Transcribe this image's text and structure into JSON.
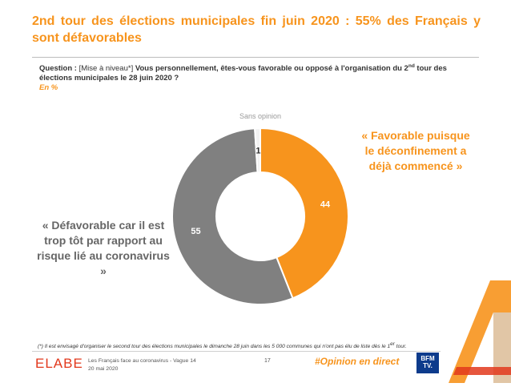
{
  "title": "2nd tour des élections municipales fin juin 2020 : 55% des Français y sont défavorables",
  "question": {
    "label": "Question :",
    "level": "[Mise à niveau*]",
    "text_before_sup": "Vous personnellement, êtes-vous favorable ou opposé à l'organisation du 2",
    "text_sup": "nd",
    "text_after_sup": " tour des élections municipales le 28 juin 2020 ?",
    "unit": "En %"
  },
  "chart_data": {
    "type": "pie",
    "donut": true,
    "slices": [
      {
        "label": "Favorable",
        "value": 44,
        "color": "#f7941d",
        "label_color": "#ffffff"
      },
      {
        "label": "Défavorable",
        "value": 55,
        "color": "#808080",
        "label_color": "#ffffff"
      },
      {
        "label": "Sans opinion",
        "value": 1,
        "color": "#f2f2f2",
        "label_color": "#333333"
      }
    ],
    "annotations": [
      "Sans opinion"
    ],
    "legend": "none"
  },
  "callouts": {
    "favorable": "« Favorable puisque le déconfinement a déjà commencé »",
    "defavorable": "« Défavorable car il est trop tôt par rapport au risque lié au coronavirus »"
  },
  "footnote": {
    "text_before_sup": "(*) Il est envisagé d'organiser le second tour des élections municipales le dimanche 28 juin dans les 5 000 communes qui n'ont pas élu de liste dès le 1",
    "text_sup": "er",
    "text_after_sup": " tour."
  },
  "footer": {
    "logo": "ELABE",
    "study": "Les Français face au coronavirus - Vague 14",
    "date": "20 mai 2020",
    "page": "17",
    "hashtag": "#Opinion en direct",
    "partner_line1": "BFM",
    "partner_line2": "TV."
  },
  "colors": {
    "accent": "#f7941d",
    "grey": "#808080",
    "partner": "#0d3b8c"
  }
}
